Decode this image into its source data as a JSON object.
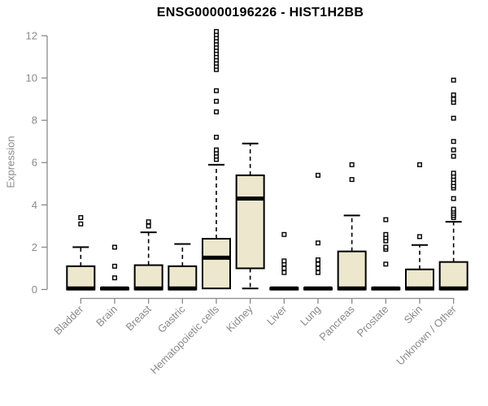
{
  "chart_data": {
    "type": "box",
    "title": "ENSG00000196226 - HIST1H2BB",
    "ylabel": "Expression",
    "xlabel": "",
    "ylim": [
      0,
      12.3
    ],
    "yticks": [
      0,
      2,
      4,
      6,
      8,
      10,
      12
    ],
    "grid": false,
    "legend": "none",
    "colors": {
      "box_fill": "#ece7cd",
      "box_border": "#000000",
      "axis": "#8a8a8a",
      "title": "#000000",
      "background": "#ffffff"
    },
    "categories": [
      "Bladder",
      "Brain",
      "Breast",
      "Gastric",
      "Hematopoietic cells",
      "Kidney",
      "Liver",
      "Lung",
      "Pancreas",
      "Prostate",
      "Skin",
      "Unknown / Other"
    ],
    "series": [
      {
        "label": "Bladder",
        "q1": 0,
        "median": 0.05,
        "q3": 1.1,
        "whisker_low": 0,
        "whisker_high": 2.0,
        "outliers": [
          3.1,
          3.4
        ]
      },
      {
        "label": "Brain",
        "q1": 0,
        "median": 0.05,
        "q3": 0.08,
        "whisker_low": 0,
        "whisker_high": 0.08,
        "outliers": [
          0.55,
          1.1,
          2.0
        ]
      },
      {
        "label": "Breast",
        "q1": 0,
        "median": 0.05,
        "q3": 1.15,
        "whisker_low": 0,
        "whisker_high": 2.7,
        "outliers": [
          3.0,
          3.2
        ]
      },
      {
        "label": "Gastric",
        "q1": 0,
        "median": 0.05,
        "q3": 1.1,
        "whisker_low": 0,
        "whisker_high": 2.15,
        "outliers": []
      },
      {
        "label": "Hematopoietic cells",
        "q1": 0.05,
        "median": 1.5,
        "q3": 2.4,
        "whisker_low": 0.05,
        "whisker_high": 5.9,
        "outliers": [
          6.15,
          6.3,
          6.45,
          6.6,
          7.2,
          8.4,
          8.9,
          9.4,
          10.4,
          10.55,
          10.7,
          10.85,
          11.0,
          11.15,
          11.3,
          11.45,
          11.6,
          11.75,
          11.9,
          12.05,
          12.2
        ]
      },
      {
        "label": "Kidney",
        "q1": 1.0,
        "median": 4.3,
        "q3": 5.4,
        "whisker_low": 0.05,
        "whisker_high": 6.9,
        "outliers": []
      },
      {
        "label": "Liver",
        "q1": 0,
        "median": 0.05,
        "q3": 0.08,
        "whisker_low": 0,
        "whisker_high": 0.08,
        "outliers": [
          0.8,
          1.0,
          1.2,
          1.35,
          2.6
        ]
      },
      {
        "label": "Lung",
        "q1": 0,
        "median": 0.05,
        "q3": 0.08,
        "whisker_low": 0,
        "whisker_high": 0.08,
        "outliers": [
          0.8,
          1.0,
          1.2,
          1.4,
          2.2,
          5.4
        ]
      },
      {
        "label": "Pancreas",
        "q1": 0,
        "median": 0.05,
        "q3": 1.8,
        "whisker_low": 0,
        "whisker_high": 3.5,
        "outliers": [
          5.2,
          5.9
        ]
      },
      {
        "label": "Prostate",
        "q1": 0,
        "median": 0.05,
        "q3": 0.08,
        "whisker_low": 0,
        "whisker_high": 0.08,
        "outliers": [
          1.2,
          1.9,
          2.0,
          2.3,
          2.45,
          2.6,
          3.3
        ]
      },
      {
        "label": "Skin",
        "q1": 0,
        "median": 0.05,
        "q3": 0.95,
        "whisker_low": 0,
        "whisker_high": 2.1,
        "outliers": [
          2.5,
          5.9
        ]
      },
      {
        "label": "Unknown / Other",
        "q1": 0,
        "median": 0.05,
        "q3": 1.3,
        "whisker_low": 0,
        "whisker_high": 3.2,
        "outliers": [
          3.4,
          3.5,
          3.6,
          3.7,
          3.8,
          4.3,
          4.8,
          4.9,
          5.05,
          5.2,
          5.35,
          5.5,
          6.3,
          6.6,
          7.0,
          8.1,
          8.85,
          9.0,
          9.2,
          9.9
        ]
      }
    ]
  }
}
